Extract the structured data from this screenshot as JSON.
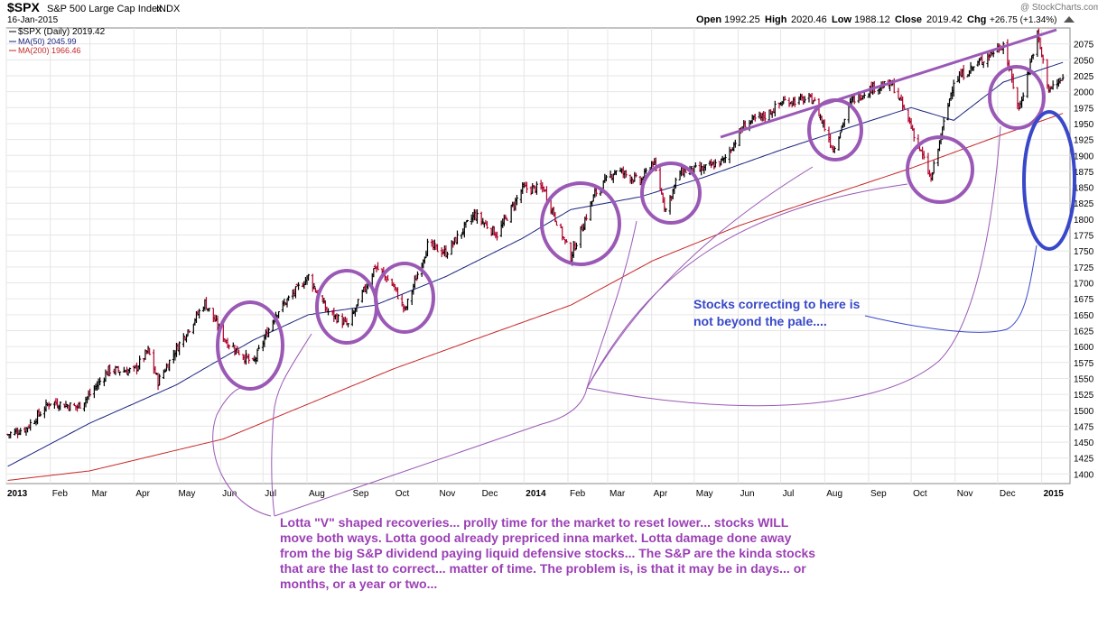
{
  "header": {
    "symbol": "$SPX",
    "name": "S&P 500 Large Cap Index",
    "exchange": "INDX",
    "date": "16-Jan-2015",
    "copyright": "@ StockCharts.com",
    "open_label": "Open",
    "open": "1992.25",
    "high_label": "High",
    "high": "2020.46",
    "low_label": "Low",
    "low": "1988.12",
    "close_label": "Close",
    "close": "2019.42",
    "chg_label": "Chg",
    "chg": "+26.75 (+1.34%)"
  },
  "legend": {
    "price": "$SPX (Daily) 2019.42",
    "ma50": "MA(50) 2045.99",
    "ma200": "MA(200) 1966.46"
  },
  "colors": {
    "bar_up": "#000000",
    "bar_down": "#b0002a",
    "ma50": "#1a237e",
    "ma200": "#c62828",
    "circle": "#9b59b6",
    "blue_circle": "#3848c8",
    "note_purple": "#9b3fb5",
    "note_blue": "#3848c8",
    "grid": "#e6e6e6"
  },
  "annotations": {
    "blue_note": "Stocks correcting to here is not beyond the pale....",
    "purple_note": "Lotta \"V\" shaped recoveries... prolly time for the market to reset lower... stocks WILL move both ways. Lotta good already prepriced inna market. Lotta damage done away from the big S&P dividend paying liquid defensive stocks... The S&P are the kinda stocks that are the last to correct... matter of time. The problem is, is that it may be in days... or months, or a year or two..."
  },
  "chart_data": {
    "type": "line",
    "title": "$SPX S&P 500 Large Cap Index INDX",
    "xlabel": "",
    "ylabel": "",
    "ylim": [
      1385,
      2100
    ],
    "y_ticks": [
      1400,
      1425,
      1450,
      1475,
      1500,
      1525,
      1550,
      1575,
      1600,
      1625,
      1650,
      1675,
      1700,
      1725,
      1750,
      1775,
      1800,
      1825,
      1850,
      1875,
      1900,
      1925,
      1950,
      1975,
      2000,
      2025,
      2050,
      2075
    ],
    "x_ticks": [
      "2013",
      "Feb",
      "Mar",
      "Apr",
      "May",
      "Jun",
      "Jul",
      "Aug",
      "Sep",
      "Oct",
      "Nov",
      "Dec",
      "2014",
      "Feb",
      "Mar",
      "Apr",
      "May",
      "Jun",
      "Jul",
      "Aug",
      "Sep",
      "Oct",
      "Nov",
      "Dec",
      "2015"
    ],
    "bold_x_ticks": [
      "2013",
      "2014",
      "2015"
    ],
    "grid": true,
    "legend_position": "top-left",
    "series": [
      {
        "name": "$SPX (Daily)",
        "style": "ohlc-bars",
        "x": [
          "2013-01-02",
          "2013-01-15",
          "2013-02-01",
          "2013-02-20",
          "2013-03-01",
          "2013-03-14",
          "2013-04-01",
          "2013-04-11",
          "2013-04-18",
          "2013-05-01",
          "2013-05-21",
          "2013-06-05",
          "2013-06-24",
          "2013-07-10",
          "2013-08-02",
          "2013-08-15",
          "2013-08-30",
          "2013-09-18",
          "2013-10-01",
          "2013-10-09",
          "2013-10-25",
          "2013-11-07",
          "2013-11-27",
          "2013-12-13",
          "2013-12-31",
          "2014-01-15",
          "2014-02-03",
          "2014-02-20",
          "2014-03-07",
          "2014-03-24",
          "2014-04-02",
          "2014-04-11",
          "2014-04-21",
          "2014-05-07",
          "2014-05-22",
          "2014-06-06",
          "2014-06-20",
          "2014-07-03",
          "2014-07-24",
          "2014-08-07",
          "2014-08-20",
          "2014-09-04",
          "2014-09-18",
          "2014-10-01",
          "2014-10-15",
          "2014-10-31",
          "2014-11-14",
          "2014-12-05",
          "2014-12-16",
          "2014-12-29",
          "2015-01-06",
          "2015-01-16"
        ],
        "close": [
          1462,
          1472,
          1513,
          1505,
          1525,
          1563,
          1562,
          1593,
          1545,
          1597,
          1669,
          1608,
          1573,
          1652,
          1710,
          1656,
          1633,
          1726,
          1695,
          1656,
          1759,
          1747,
          1807,
          1776,
          1848,
          1848,
          1741,
          1840,
          1878,
          1858,
          1891,
          1815,
          1875,
          1878,
          1892,
          1950,
          1962,
          1985,
          1988,
          1910,
          1986,
          2007,
          2011,
          1946,
          1862,
          2018,
          2039,
          2075,
          1972,
          2090,
          2003,
          2019
        ]
      },
      {
        "name": "MA(50)",
        "x": [
          "2013-01-02",
          "2013-03-01",
          "2013-05-01",
          "2013-06-24",
          "2013-08-02",
          "2013-09-18",
          "2013-11-07",
          "2013-12-31",
          "2014-02-03",
          "2014-03-24",
          "2014-05-07",
          "2014-07-03",
          "2014-08-20",
          "2014-10-01",
          "2014-10-31",
          "2014-12-05",
          "2015-01-16"
        ],
        "values": [
          1412,
          1480,
          1540,
          1610,
          1650,
          1665,
          1710,
          1770,
          1815,
          1835,
          1865,
          1910,
          1945,
          1975,
          1955,
          2015,
          2046
        ]
      },
      {
        "name": "MA(200)",
        "x": [
          "2013-01-02",
          "2013-03-01",
          "2013-06-03",
          "2013-08-02",
          "2013-10-01",
          "2013-12-02",
          "2014-02-03",
          "2014-04-02",
          "2014-06-02",
          "2014-08-01",
          "2014-10-01",
          "2014-12-01",
          "2015-01-16"
        ],
        "values": [
          1390,
          1405,
          1455,
          1510,
          1565,
          1615,
          1665,
          1735,
          1790,
          1835,
          1880,
          1930,
          1966
        ]
      }
    ]
  }
}
